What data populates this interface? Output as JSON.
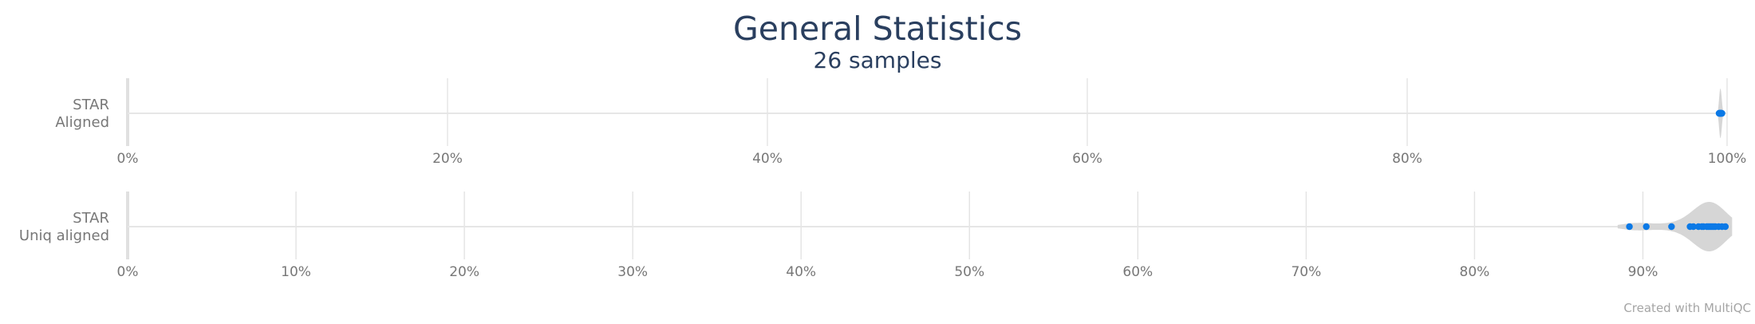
{
  "chart_data": {
    "type": "violin",
    "title": "General Statistics",
    "subtitle": "26 samples",
    "credit": "Created with MultiQC",
    "colors": {
      "violin": "#d6d6d6",
      "points": "#0b79e6",
      "grid": "#e3e3e3",
      "title": "#2a3f5f",
      "labels": "#777777"
    },
    "rows": [
      {
        "name": "STAR Aligned",
        "label_lines": [
          "STAR",
          "Aligned"
        ],
        "xlim": [
          0,
          100
        ],
        "ticks": [
          0,
          20,
          40,
          60,
          80,
          100
        ],
        "tick_labels": [
          "0%",
          "20%",
          "40%",
          "60%",
          "80%",
          "100%"
        ],
        "violin_range": [
          99.3,
          99.8
        ],
        "values": [
          99.5,
          99.52,
          99.55,
          99.58,
          99.6,
          99.62,
          99.65,
          99.68,
          99.55,
          99.6
        ]
      },
      {
        "name": "STAR Uniq aligned",
        "label_lines": [
          "STAR",
          "Uniq aligned"
        ],
        "xlim": [
          0,
          95
        ],
        "ticks": [
          0,
          10,
          20,
          30,
          40,
          50,
          60,
          70,
          80,
          90
        ],
        "tick_labels": [
          "0%",
          "10%",
          "20%",
          "30%",
          "40%",
          "50%",
          "60%",
          "70%",
          "80%",
          "90%"
        ],
        "violin_range": [
          88.5,
          95.3
        ],
        "values": [
          89.2,
          90.2,
          91.7,
          92.8,
          93.0,
          93.3,
          93.5,
          93.6,
          93.8,
          94.0,
          94.1,
          94.3,
          94.5,
          94.7,
          94.9,
          93.9,
          94.2
        ]
      }
    ]
  }
}
